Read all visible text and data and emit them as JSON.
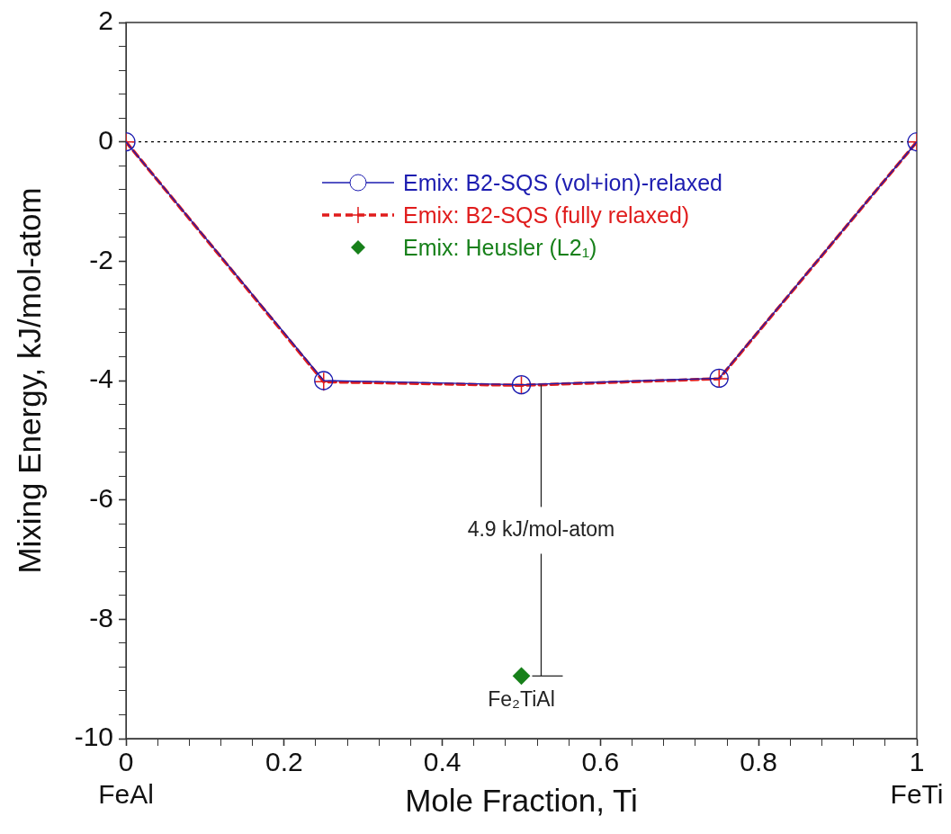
{
  "chart_data": {
    "type": "line",
    "xlabel": "Mole Fraction, Ti",
    "ylabel": "Mixing Energy, kJ/mol-atom",
    "xlim": [
      0,
      1
    ],
    "ylim": [
      -10,
      2
    ],
    "xticks": [
      {
        "value": 0,
        "label": "0\nFeAl"
      },
      {
        "value": 0.04,
        "label": null
      },
      {
        "value": 0.08,
        "label": null
      },
      {
        "value": 0.12,
        "label": null
      },
      {
        "value": 0.16,
        "label": null
      },
      0.2,
      {
        "value": 0.24,
        "label": null
      },
      {
        "value": 0.28,
        "label": null
      },
      {
        "value": 0.32,
        "label": null
      },
      {
        "value": 0.36,
        "label": null
      },
      0.4,
      {
        "value": 0.44,
        "label": null
      },
      {
        "value": 0.48,
        "label": null
      },
      {
        "value": 0.52,
        "label": null
      },
      {
        "value": 0.56,
        "label": null
      },
      0.6,
      {
        "value": 0.64,
        "label": null
      },
      {
        "value": 0.68,
        "label": null
      },
      {
        "value": 0.72,
        "label": null
      },
      {
        "value": 0.76,
        "label": null
      },
      0.8,
      {
        "value": 0.84,
        "label": null
      },
      {
        "value": 0.88,
        "label": null
      },
      {
        "value": 0.92,
        "label": null
      },
      {
        "value": 0.96,
        "label": null
      },
      {
        "value": 1,
        "label": "1\nFeTi"
      }
    ],
    "yticks": [
      -10,
      {
        "value": -9.6,
        "label": null
      },
      {
        "value": -9.2,
        "label": null
      },
      {
        "value": -8.8,
        "label": null
      },
      {
        "value": -8.4,
        "label": null
      },
      -8,
      {
        "value": -7.6,
        "label": null
      },
      {
        "value": -7.2,
        "label": null
      },
      {
        "value": -6.8,
        "label": null
      },
      {
        "value": -6.4,
        "label": null
      },
      -6,
      {
        "value": -5.6,
        "label": null
      },
      {
        "value": -5.2,
        "label": null
      },
      {
        "value": -4.8,
        "label": null
      },
      {
        "value": -4.4,
        "label": null
      },
      -4,
      {
        "value": -3.6,
        "label": null
      },
      {
        "value": -3.2,
        "label": null
      },
      {
        "value": -2.8,
        "label": null
      },
      {
        "value": -2.4,
        "label": null
      },
      -2,
      {
        "value": -1.6,
        "label": null
      },
      {
        "value": -1.2,
        "label": null
      },
      {
        "value": -0.8,
        "label": null
      },
      {
        "value": -0.4,
        "label": null
      },
      0,
      {
        "value": 0.4,
        "label": null
      },
      {
        "value": 0.8,
        "label": null
      },
      {
        "value": 1.2,
        "label": null
      },
      {
        "value": 1.6,
        "label": null
      },
      2
    ],
    "series": [
      {
        "name": "Emix: B2-SQS (vol+ion)-relaxed",
        "color": "#1c1cb0",
        "x": [
          0,
          0.25,
          0.5,
          0.75,
          1
        ],
        "values": [
          0,
          -4.0,
          -4.07,
          -3.96,
          0
        ],
        "marker": "circle",
        "line_style": "solid"
      },
      {
        "name": "Emix: B2-SQS (fully relaxed)",
        "color": "#e01c1c",
        "x": [
          0,
          0.25,
          0.5,
          0.75,
          1
        ],
        "values": [
          0,
          -4.02,
          -4.08,
          -3.97,
          0
        ],
        "marker": "cross",
        "line_style": "dashed"
      },
      {
        "name": "Emix: Heusler (L2₁)",
        "color": "#17801a",
        "type": "scatter",
        "x": [
          0.5
        ],
        "values": [
          -8.95
        ],
        "marker": "diamond"
      }
    ],
    "ref_lines": [
      {
        "axis": "y",
        "value": 0,
        "color": "#000000",
        "line_style": "dotted"
      }
    ],
    "annotations": [
      {
        "text": "4.9 kJ/mol-atom",
        "x": 0.525,
        "y": -4.07
      },
      {
        "text": "Fe₂TiAl",
        "x": 0.5,
        "y": -8.95
      }
    ],
    "legend": "top",
    "grid": false
  }
}
